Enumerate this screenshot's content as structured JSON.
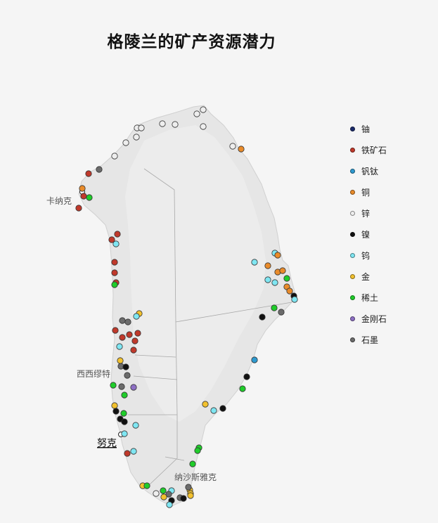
{
  "title": "格陵兰的矿产资源潜力",
  "colors": {
    "uranium": "#1b2a6b",
    "iron": "#c0392b",
    "vanadium_titanium": "#2e9ad0",
    "copper": "#e98b2a",
    "zinc": "#eeeeee",
    "nickel": "#111111",
    "tungsten": "#7fe6f2",
    "gold": "#f2c12e",
    "rare_earth": "#1fcc2a",
    "diamond": "#8d6fc4",
    "graphite": "#6b6b6b"
  },
  "legend": [
    {
      "key": "uranium",
      "label": "铀"
    },
    {
      "key": "iron",
      "label": "铁矿石"
    },
    {
      "key": "vanadium_titanium",
      "label": "钒钛"
    },
    {
      "key": "copper",
      "label": "铜"
    },
    {
      "key": "zinc",
      "label": "锌"
    },
    {
      "key": "nickel",
      "label": "镍"
    },
    {
      "key": "tungsten",
      "label": "钨"
    },
    {
      "key": "gold",
      "label": "金"
    },
    {
      "key": "rare_earth",
      "label": "稀土"
    },
    {
      "key": "diamond",
      "label": "金刚石"
    },
    {
      "key": "graphite",
      "label": "石墨"
    }
  ],
  "places": {
    "qaanaaq": "卡纳克",
    "sisimiut": "西西缪特",
    "nuuk": "努克",
    "narsarsuaq": "纳沙斯雅克"
  }
}
